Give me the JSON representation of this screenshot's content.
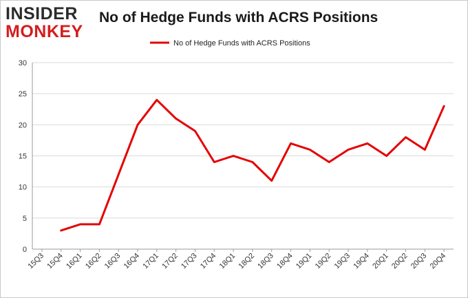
{
  "logo": {
    "line1": "INSIDER",
    "line2": "MONKEY"
  },
  "chart_data": {
    "type": "line",
    "title": "No of Hedge Funds with ACRS Positions",
    "xlabel": "",
    "ylabel": "",
    "categories": [
      "15Q3",
      "15Q4",
      "16Q1",
      "16Q2",
      "16Q3",
      "16Q4",
      "17Q1",
      "17Q2",
      "17Q3",
      "17Q4",
      "18Q1",
      "18Q2",
      "18Q3",
      "18Q4",
      "19Q1",
      "19Q2",
      "19Q3",
      "19Q4",
      "20Q1",
      "20Q2",
      "20Q3",
      "20Q4"
    ],
    "series": [
      {
        "name": "No of Hedge Funds with ACRS Positions",
        "color": "#e50000",
        "values": [
          null,
          3,
          4,
          4,
          12,
          20,
          24,
          21,
          19,
          14,
          15,
          14,
          11,
          17,
          16,
          14,
          16,
          17,
          15,
          18,
          16,
          23
        ]
      }
    ],
    "ylim": [
      0,
      30
    ],
    "yticks": [
      0,
      5,
      10,
      15,
      20,
      25,
      30
    ],
    "grid": true,
    "legend": "top-center"
  }
}
